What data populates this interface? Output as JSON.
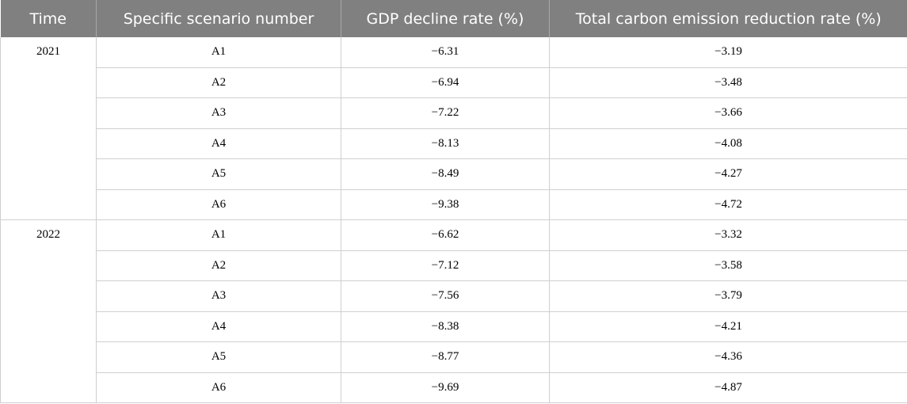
{
  "table": {
    "headers": [
      "Time",
      "Specific scenario number",
      "GDP decline rate (%)",
      "Total carbon emission reduction rate (%)"
    ],
    "groups": [
      {
        "time": "2021",
        "rows": [
          {
            "scenario": "A1",
            "gdp": "−6.31",
            "carbon": "−3.19"
          },
          {
            "scenario": "A2",
            "gdp": "−6.94",
            "carbon": "−3.48"
          },
          {
            "scenario": "A3",
            "gdp": "−7.22",
            "carbon": "−3.66"
          },
          {
            "scenario": "A4",
            "gdp": "−8.13",
            "carbon": "−4.08"
          },
          {
            "scenario": "A5",
            "gdp": "−8.49",
            "carbon": "−4.27"
          },
          {
            "scenario": "A6",
            "gdp": "−9.38",
            "carbon": "−4.72"
          }
        ]
      },
      {
        "time": "2022",
        "rows": [
          {
            "scenario": "A1",
            "gdp": "−6.62",
            "carbon": "−3.32"
          },
          {
            "scenario": "A2",
            "gdp": "−7.12",
            "carbon": "−3.58"
          },
          {
            "scenario": "A3",
            "gdp": "−7.56",
            "carbon": "−3.79"
          },
          {
            "scenario": "A4",
            "gdp": "−8.38",
            "carbon": "−4.21"
          },
          {
            "scenario": "A5",
            "gdp": "−8.77",
            "carbon": "−4.36"
          },
          {
            "scenario": "A6",
            "gdp": "−9.69",
            "carbon": "−4.87"
          }
        ]
      }
    ]
  },
  "colors": {
    "header_bg": "#808080",
    "header_text": "#ffffff",
    "grid_line": "#cfcfcf"
  }
}
